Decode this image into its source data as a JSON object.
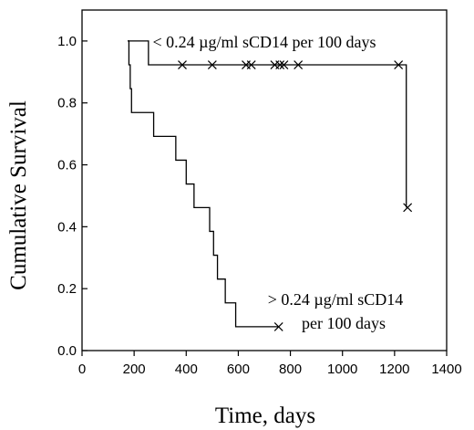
{
  "chart_data": {
    "type": "line",
    "subtype": "kaplan-meier step",
    "title": "",
    "xlabel": "Time, days",
    "ylabel": "Cumulative Survival",
    "xlim": [
      0,
      1400
    ],
    "ylim": [
      0.0,
      1.1
    ],
    "xticks": [
      0,
      200,
      400,
      600,
      800,
      1000,
      1200,
      1400
    ],
    "yticks": [
      0.0,
      0.2,
      0.4,
      0.6,
      0.8,
      1.0
    ],
    "ytick_labels": [
      "0.0",
      "0.2",
      "0.4",
      "0.6",
      "0.8",
      "1.0"
    ],
    "grid": false,
    "frame": "box",
    "series": [
      {
        "name": "< 0.24 µg/ml sCD14 per 100 days",
        "steps": [
          {
            "x": 175,
            "y": 1.0
          },
          {
            "x": 255,
            "y": 0.923
          },
          {
            "x": 1245,
            "y": 0.462
          }
        ],
        "end_x": 1245,
        "censored": [
          {
            "x": 385,
            "y": 0.923
          },
          {
            "x": 500,
            "y": 0.923
          },
          {
            "x": 630,
            "y": 0.923
          },
          {
            "x": 650,
            "y": 0.923
          },
          {
            "x": 740,
            "y": 0.923
          },
          {
            "x": 760,
            "y": 0.923
          },
          {
            "x": 775,
            "y": 0.923
          },
          {
            "x": 830,
            "y": 0.923
          },
          {
            "x": 1215,
            "y": 0.923
          },
          {
            "x": 1250,
            "y": 0.462
          }
        ]
      },
      {
        "name": "> 0.24 µg/ml sCD14 per 100 days",
        "steps": [
          {
            "x": 175,
            "y": 1.0
          },
          {
            "x": 180,
            "y": 0.923
          },
          {
            "x": 185,
            "y": 0.846
          },
          {
            "x": 190,
            "y": 0.769
          },
          {
            "x": 275,
            "y": 0.692
          },
          {
            "x": 360,
            "y": 0.615
          },
          {
            "x": 400,
            "y": 0.538
          },
          {
            "x": 430,
            "y": 0.462
          },
          {
            "x": 490,
            "y": 0.385
          },
          {
            "x": 505,
            "y": 0.308
          },
          {
            "x": 520,
            "y": 0.231
          },
          {
            "x": 550,
            "y": 0.154
          },
          {
            "x": 590,
            "y": 0.077
          }
        ],
        "end_x": 755,
        "censored": [
          {
            "x": 755,
            "y": 0.077
          }
        ]
      }
    ],
    "annotations": [
      {
        "lines": [
          "< 0.24 µg/ml sCD14 per 100 days"
        ],
        "anchor": "top-center"
      },
      {
        "lines": [
          "> 0.24 µg/ml sCD14",
          "per 100 days"
        ],
        "anchor": "bottom-right"
      }
    ]
  }
}
